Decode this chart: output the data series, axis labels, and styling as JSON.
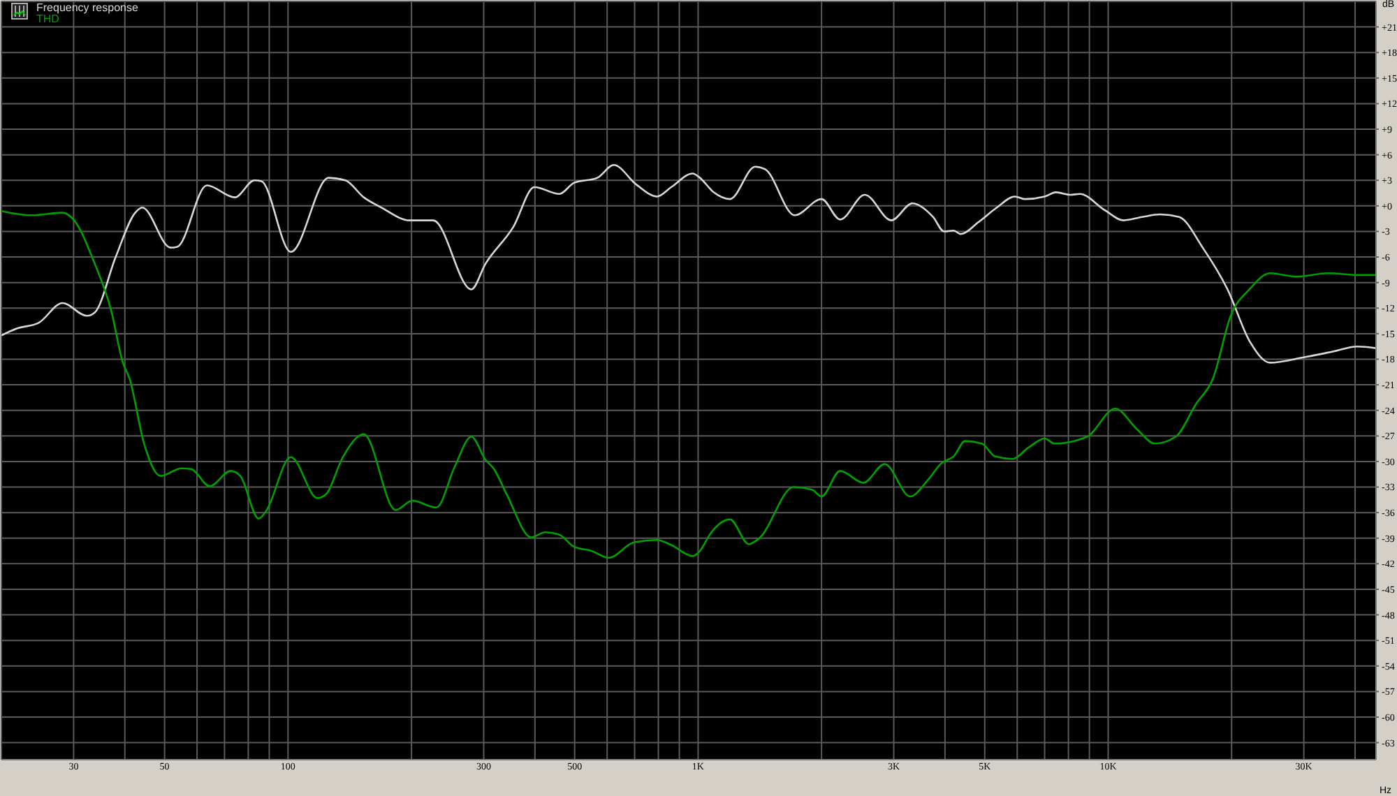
{
  "chart_data": {
    "type": "line",
    "xlabel": "Hz",
    "ylabel": "dB",
    "log": "x",
    "grid": true,
    "legend": "top left",
    "marker": "none",
    "line_style": "solid",
    "xlim": [
      20,
      45000
    ],
    "ylim": [
      -65,
      24
    ],
    "xticks": [
      30,
      {
        "value": 40,
        "label": null
      },
      50,
      {
        "value": 60,
        "label": null
      },
      {
        "value": 70,
        "label": null
      },
      {
        "value": 80,
        "label": null
      },
      {
        "value": 90,
        "label": null
      },
      100,
      {
        "value": 200,
        "label": null
      },
      300,
      {
        "value": 400,
        "label": null
      },
      500,
      {
        "value": 600,
        "label": null
      },
      {
        "value": 700,
        "label": null
      },
      {
        "value": 800,
        "label": null
      },
      {
        "value": 900,
        "label": null
      },
      {
        "value": 1000,
        "label": "1K"
      },
      {
        "value": 2000,
        "label": null
      },
      {
        "value": 3000,
        "label": "3K"
      },
      {
        "value": 4000,
        "label": null
      },
      {
        "value": 5000,
        "label": "5K"
      },
      {
        "value": 6000,
        "label": null
      },
      {
        "value": 7000,
        "label": null
      },
      {
        "value": 8000,
        "label": null
      },
      {
        "value": 9000,
        "label": null
      },
      {
        "value": 10000,
        "label": "10K"
      },
      {
        "value": 20000,
        "label": null
      },
      {
        "value": 30000,
        "label": "30K"
      },
      {
        "value": 40000,
        "label": null
      }
    ],
    "yticks": [
      {
        "value": 21,
        "label": "+21"
      },
      {
        "value": 18,
        "label": "+18"
      },
      {
        "value": 15,
        "label": "+15"
      },
      {
        "value": 12,
        "label": "+12"
      },
      {
        "value": 9,
        "label": "+9"
      },
      {
        "value": 6,
        "label": "+6"
      },
      {
        "value": 3,
        "label": "+3"
      },
      {
        "value": 0,
        "label": "+0"
      },
      -3,
      -6,
      -9,
      -12,
      -15,
      -18,
      -21,
      -24,
      -27,
      -30,
      -33,
      -36,
      -39,
      -42,
      -45,
      -48,
      -51,
      -54,
      -57,
      -60,
      -63
    ],
    "series": [
      {
        "name": "Frequency response",
        "color": "#d8d8d8",
        "x": [
          20,
          21.8,
          24.7,
          28.2,
          32.3,
          33.8,
          38,
          42.4,
          44.1,
          51.7,
          53.7,
          63.4,
          74.2,
          82.8,
          86.1,
          101.6,
          125.6,
          138,
          153,
          169,
          198,
          226,
          280,
          303,
          354,
          399,
          459,
          498,
          568,
          623,
          707,
          794,
          860,
          970,
          1010,
          1091,
          1196,
          1378,
          1457,
          1720,
          2000,
          2220,
          2550,
          2960,
          3330,
          3740,
          3980,
          4200,
          4370,
          4830,
          5350,
          5920,
          6260,
          7000,
          7460,
          8080,
          8530,
          9810,
          10900,
          12100,
          13400,
          14900,
          17000,
          19500,
          22200,
          24800,
          29800,
          35300,
          40500,
          45000
        ],
        "values": [
          -15.2,
          -14.4,
          -13.7,
          -11.4,
          -12.9,
          -12.5,
          -6.0,
          -0.8,
          -0.2,
          -4.9,
          -4.8,
          2.4,
          1.0,
          3.0,
          2.9,
          -5.4,
          3.3,
          3.0,
          1.0,
          -0.2,
          -1.7,
          -1.7,
          -9.8,
          -6.8,
          -2.5,
          2.2,
          1.4,
          2.7,
          3.3,
          4.8,
          2.5,
          1.1,
          2.2,
          3.8,
          3.3,
          1.6,
          0.8,
          4.6,
          4.3,
          -1.1,
          0.8,
          -1.6,
          1.3,
          -1.7,
          0.3,
          -1.3,
          -3.0,
          -2.9,
          -3.3,
          -1.9,
          -0.2,
          1.1,
          0.8,
          1.1,
          1.6,
          1.3,
          1.4,
          -0.5,
          -1.7,
          -1.3,
          -1.0,
          -1.3,
          -4.9,
          -9.7,
          -16.0,
          -18.4,
          -17.8,
          -17.1,
          -16.5,
          -16.7
        ]
      },
      {
        "name": "THD",
        "color": "#00a000",
        "x": [
          20,
          23.7,
          28.2,
          30.1,
          33.6,
          37.1,
          39.5,
          41.1,
          44.5,
          48.9,
          55,
          58.1,
          64.4,
          72.5,
          76.5,
          84.8,
          88.2,
          101.6,
          118,
          124,
          136,
          153,
          183,
          201,
          230,
          255,
          280,
          303,
          318,
          341,
          392,
          424,
          459,
          498,
          550,
          605,
          697,
          794,
          860,
          970,
          1010,
          1074,
          1196,
          1330,
          1410,
          1710,
          1895,
          2000,
          2220,
          2530,
          2850,
          3290,
          3630,
          3920,
          4200,
          4480,
          4920,
          5300,
          5850,
          6380,
          7000,
          7400,
          8880,
          10400,
          11800,
          12980,
          14600,
          16400,
          18000,
          19900,
          22200,
          24800,
          28800,
          34400,
          40500,
          45000
        ],
        "values": [
          -0.6,
          -1.1,
          -0.8,
          -1.7,
          -6.5,
          -12.4,
          -18.3,
          -20.3,
          -27.8,
          -31.7,
          -30.8,
          -30.9,
          -32.9,
          -31.1,
          -31.7,
          -36.7,
          -35.9,
          -29.5,
          -34.3,
          -33.8,
          -29.5,
          -26.8,
          -35.7,
          -34.6,
          -35.4,
          -30.6,
          -27.1,
          -29.8,
          -30.9,
          -33.8,
          -38.9,
          -38.3,
          -38.6,
          -40.0,
          -40.5,
          -41.3,
          -39.5,
          -39.2,
          -39.8,
          -41.1,
          -40.5,
          -38.4,
          -36.8,
          -39.7,
          -39.0,
          -33.0,
          -33.3,
          -34.1,
          -31.1,
          -32.5,
          -30.3,
          -34.1,
          -32.2,
          -30.2,
          -29.4,
          -27.6,
          -27.9,
          -29.4,
          -29.7,
          -28.4,
          -27.3,
          -27.9,
          -27.1,
          -23.8,
          -26.3,
          -27.9,
          -27.1,
          -23.2,
          -20.3,
          -12.9,
          -9.7,
          -7.9,
          -8.3,
          -7.9,
          -8.1,
          -8.1
        ]
      }
    ]
  }
}
